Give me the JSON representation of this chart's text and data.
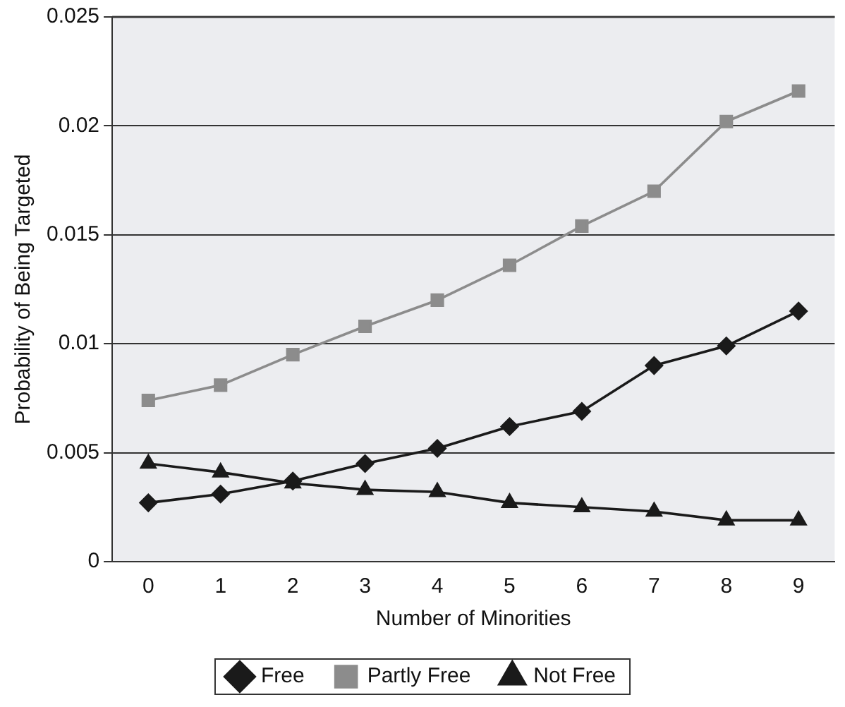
{
  "chart_data": {
    "type": "line",
    "xlabel": "Number of Minorities",
    "ylabel": "Probability of Being Targeted",
    "categories": [
      "0",
      "1",
      "2",
      "3",
      "4",
      "5",
      "6",
      "7",
      "8",
      "9"
    ],
    "series": [
      {
        "name": "Free",
        "color": "#1a1a1a",
        "marker": "diamond",
        "values": [
          0.0027,
          0.0031,
          0.0037,
          0.0045,
          0.0052,
          0.0062,
          0.0069,
          0.009,
          0.0099,
          0.0115
        ]
      },
      {
        "name": "Partly Free",
        "color": "#8c8c8c",
        "marker": "square",
        "values": [
          0.0074,
          0.0081,
          0.0095,
          0.0108,
          0.012,
          0.0136,
          0.0154,
          0.017,
          0.0202,
          0.0216
        ]
      },
      {
        "name": "Not Free",
        "color": "#1a1a1a",
        "marker": "triangle",
        "values": [
          0.0045,
          0.0041,
          0.0036,
          0.0033,
          0.0032,
          0.0027,
          0.0025,
          0.0023,
          0.0019,
          0.0019
        ]
      }
    ],
    "ylim": [
      0,
      0.025
    ],
    "yticks": [
      0,
      0.005,
      0.01,
      0.015,
      0.02,
      0.025
    ],
    "grid": "y",
    "legend": "bottom"
  }
}
